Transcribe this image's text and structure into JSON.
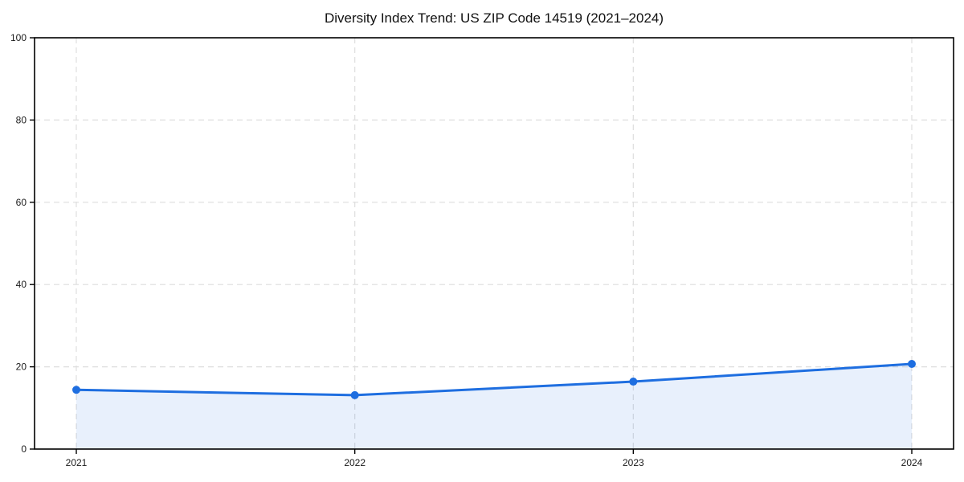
{
  "page": {
    "background_color": "#ffffff"
  },
  "chart_data": {
    "type": "area",
    "title": "Diversity Index Trend: US ZIP Code 14519 (2021–2024)",
    "categories": [
      "2021",
      "2022",
      "2023",
      "2024"
    ],
    "x": [
      2021,
      2022,
      2023,
      2024
    ],
    "series": [
      {
        "name": "Diversity Index",
        "values": [
          14.4,
          13.1,
          16.4,
          20.7
        ]
      }
    ],
    "xlabel": "",
    "ylabel": "",
    "ylim": [
      0,
      100
    ],
    "yticks": [
      0,
      20,
      40,
      60,
      80,
      100
    ],
    "x_margin_years": 0.15,
    "grid": "dashed-both-axes",
    "legend_position": "none",
    "colors": {
      "line": "#1e6ee0",
      "marker": "#1e6ee0",
      "fill": "rgba(30, 110, 224, 0.10)",
      "grid": "#dedede",
      "frame": "#000000",
      "tick_text": "#1a1a1a",
      "title_text": "#111111"
    }
  }
}
